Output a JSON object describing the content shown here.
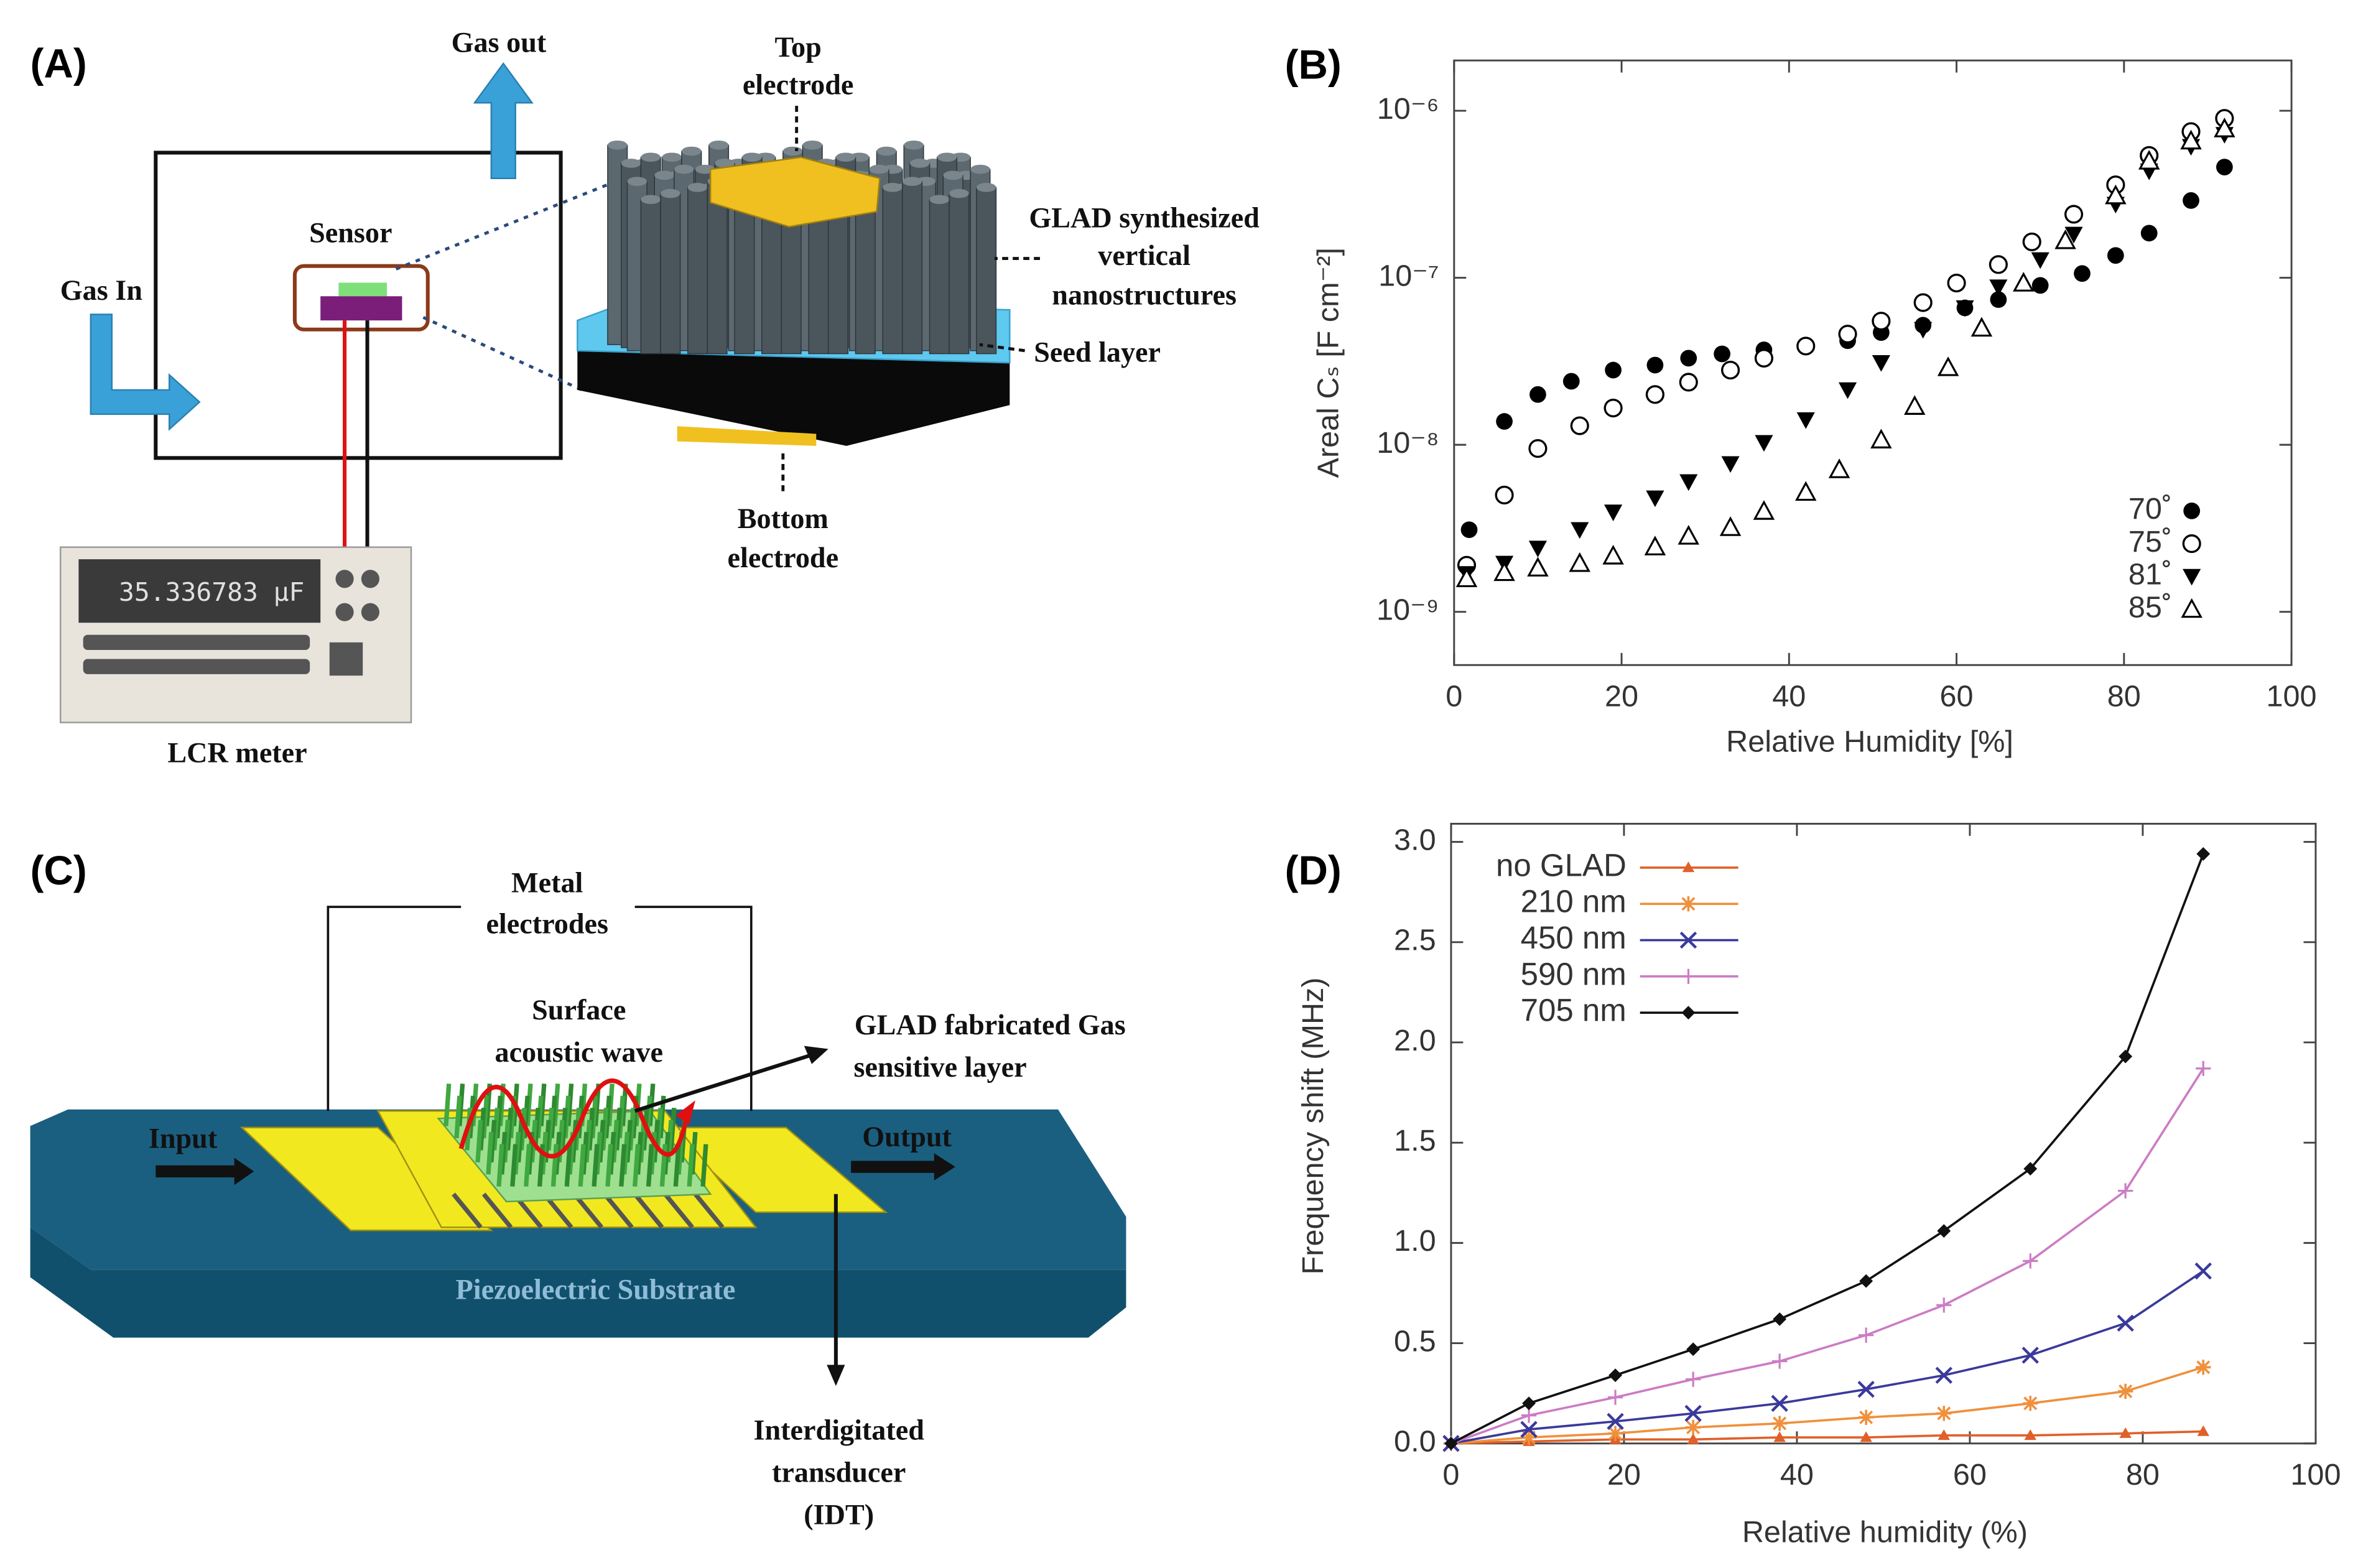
{
  "diagram_a": {
    "label": "(A)",
    "gas_out": "Gas out",
    "top_electrode": [
      "Top",
      "electrode"
    ],
    "sensor": "Sensor",
    "gas_in": "Gas In",
    "glad": [
      "GLAD synthesized",
      "vertical",
      "nanostructures"
    ],
    "seed_layer": "Seed layer",
    "bottom_electrode": [
      "Bottom",
      "electrode"
    ],
    "meter_display": "35.336783 µF",
    "lcr_meter": "LCR meter"
  },
  "diagram_c": {
    "label": "(C)",
    "metal_electrodes": [
      "Metal",
      "electrodes"
    ],
    "saw": [
      "Surface",
      "acoustic wave"
    ],
    "glad": [
      "GLAD fabricated Gas",
      "sensitive layer"
    ],
    "input": "Input",
    "output": "Output",
    "substrate": "Piezoelectric Substrate",
    "idt": [
      "Interdigitated",
      "transducer",
      "(IDT)"
    ]
  },
  "chart_data": [
    {
      "type": "scatter",
      "label": "(B)",
      "xlabel": "Relative Humidity [%]",
      "ylabel": "Areal Cₛ [F cm⁻²]",
      "yscale": "log",
      "xlim": [
        0,
        100
      ],
      "ylim": [
        4.8e-10,
        2e-06
      ],
      "xticks": [
        0,
        20,
        40,
        60,
        80,
        100
      ],
      "yticks": [
        {
          "value": 1e-09,
          "label": "10⁻⁹"
        },
        {
          "value": 1e-08,
          "label": "10⁻⁸"
        },
        {
          "value": 1e-07,
          "label": "10⁻⁷"
        },
        {
          "value": 1e-06,
          "label": "10⁻⁶"
        }
      ],
      "legend": "lower right",
      "series": [
        {
          "name": "70˚",
          "marker": "circle-filled",
          "color": "#000000",
          "x": [
            1.8,
            6,
            10,
            14,
            19,
            24,
            28,
            32,
            37,
            42,
            47,
            51,
            56,
            61,
            65,
            70,
            75,
            79,
            83,
            88,
            92
          ],
          "values": [
            3.1e-09,
            1.38e-08,
            2e-08,
            2.4e-08,
            2.8e-08,
            3e-08,
            3.3e-08,
            3.5e-08,
            3.7e-08,
            3.9e-08,
            4.2e-08,
            4.7e-08,
            5.2e-08,
            6.6e-08,
            7.4e-08,
            9e-08,
            1.06e-07,
            1.36e-07,
            1.85e-07,
            2.9e-07,
            4.6e-07
          ]
        },
        {
          "name": "75˚",
          "marker": "circle-open",
          "color": "#000000",
          "x": [
            1.5,
            6,
            10,
            15,
            19,
            24,
            28,
            33,
            37,
            42,
            47,
            51,
            56,
            60,
            65,
            69,
            74,
            79,
            83,
            88,
            92
          ],
          "values": [
            1.9e-09,
            5e-09,
            9.5e-09,
            1.3e-08,
            1.66e-08,
            2e-08,
            2.37e-08,
            2.8e-08,
            3.3e-08,
            3.9e-08,
            4.6e-08,
            5.5e-08,
            7.1e-08,
            9.3e-08,
            1.2e-07,
            1.64e-07,
            2.4e-07,
            3.6e-07,
            5.4e-07,
            7.5e-07,
            9e-07
          ]
        },
        {
          "name": "81˚",
          "marker": "triangle-down-filled",
          "color": "#000000",
          "x": [
            1.5,
            6,
            10,
            15,
            19,
            24,
            28,
            33,
            37,
            42,
            47,
            51,
            56,
            61,
            65,
            70,
            74,
            79,
            83,
            88,
            92
          ],
          "values": [
            1.69e-09,
            1.95e-09,
            2.4e-09,
            3.1e-09,
            3.95e-09,
            4.8e-09,
            6e-09,
            7.7e-09,
            1.03e-08,
            1.41e-08,
            2.13e-08,
            3.1e-08,
            4.9e-08,
            6.6e-08,
            8.8e-08,
            1.28e-07,
            1.82e-07,
            2.75e-07,
            4.35e-07,
            6.1e-07,
            7.2e-07
          ]
        },
        {
          "name": "85˚",
          "marker": "triangle-up-open",
          "color": "#000000",
          "x": [
            1.5,
            6,
            10,
            15,
            19,
            24,
            28,
            33,
            37,
            42,
            46,
            51,
            55,
            59,
            63,
            68,
            73,
            79,
            83,
            88,
            92
          ],
          "values": [
            1.58e-09,
            1.72e-09,
            1.83e-09,
            1.95e-09,
            2.16e-09,
            2.45e-09,
            2.84e-09,
            3.2e-09,
            4e-09,
            5.2e-09,
            7.1e-09,
            1.07e-08,
            1.7e-08,
            2.9e-08,
            5e-08,
            9.3e-08,
            1.67e-07,
            3.1e-07,
            5e-07,
            6.6e-07,
            7.8e-07
          ]
        }
      ]
    },
    {
      "type": "line",
      "label": "(D)",
      "xlabel": "Relative humidity (%)",
      "ylabel": "Frequency shift (MHz)",
      "xlim": [
        0,
        100
      ],
      "ylim": [
        0,
        3
      ],
      "xticks": [
        0,
        20,
        40,
        60,
        80,
        100
      ],
      "yticks": [
        {
          "value": 0,
          "label": "0.0"
        },
        0.5,
        {
          "value": 1,
          "label": "1.0"
        },
        1.5,
        {
          "value": 2,
          "label": "2.0"
        },
        2.5,
        {
          "value": 3,
          "label": "3.0"
        }
      ],
      "legend": "upper left",
      "x": [
        0,
        9,
        19,
        28,
        38,
        48,
        57,
        67,
        78,
        87
      ],
      "series": [
        {
          "name": "no GLAD",
          "marker": "triangle",
          "color": "#e0602a",
          "values": [
            0,
            0.01,
            0.02,
            0.02,
            0.03,
            0.03,
            0.04,
            0.04,
            0.05,
            0.06
          ]
        },
        {
          "name": "210 nm",
          "marker": "star",
          "color": "#f0903c",
          "values": [
            0,
            0.03,
            0.05,
            0.08,
            0.1,
            0.13,
            0.15,
            0.2,
            0.26,
            0.38
          ]
        },
        {
          "name": "450 nm",
          "marker": "x",
          "color": "#3a3a9c",
          "values": [
            0,
            0.07,
            0.11,
            0.15,
            0.2,
            0.27,
            0.34,
            0.44,
            0.6,
            0.86
          ]
        },
        {
          "name": "590 nm",
          "marker": "plus",
          "color": "#cc7cc4",
          "values": [
            0,
            0.14,
            0.23,
            0.32,
            0.41,
            0.54,
            0.69,
            0.91,
            1.26,
            1.87
          ]
        },
        {
          "name": "705 nm",
          "marker": "diamond",
          "color": "#111111",
          "values": [
            0,
            0.2,
            0.34,
            0.47,
            0.62,
            0.81,
            1.06,
            1.37,
            1.93,
            2.94
          ]
        }
      ]
    }
  ]
}
